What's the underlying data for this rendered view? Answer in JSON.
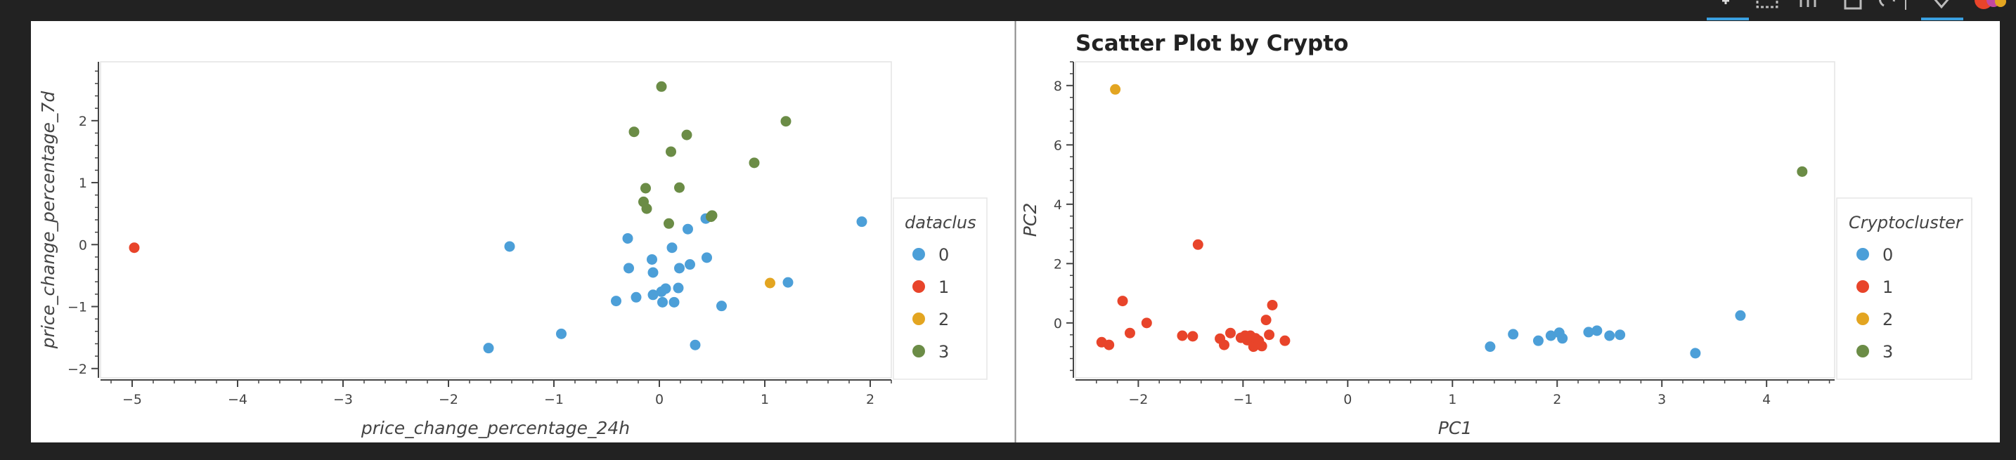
{
  "chart_data": [
    {
      "type": "scatter",
      "title": "",
      "xlabel": "price_change_percentage_24h",
      "ylabel": "price_change_percentage_7d",
      "xlim": [
        -5.3,
        2.2
      ],
      "ylim": [
        -2.15,
        2.95
      ],
      "x_ticks": [
        -5,
        -4,
        -3,
        -2,
        -1,
        0,
        1,
        2
      ],
      "y_ticks": [
        -2,
        -1,
        0,
        1,
        2
      ],
      "grid": false,
      "legend": {
        "title": "dataclus",
        "placement": "right"
      },
      "series": [
        {
          "name": "0",
          "color": "#4c9fd8",
          "points": [
            [
              1.92,
              0.37
            ],
            [
              -1.42,
              -0.03
            ],
            [
              -0.3,
              0.1
            ],
            [
              0.27,
              0.25
            ],
            [
              0.44,
              0.42
            ],
            [
              0.12,
              -0.05
            ],
            [
              0.45,
              -0.21
            ],
            [
              -0.29,
              -0.38
            ],
            [
              -0.07,
              -0.24
            ],
            [
              -0.06,
              -0.45
            ],
            [
              0.19,
              -0.38
            ],
            [
              0.29,
              -0.32
            ],
            [
              1.22,
              -0.61
            ],
            [
              -0.06,
              -0.81
            ],
            [
              0.02,
              -0.76
            ],
            [
              0.06,
              -0.71
            ],
            [
              0.18,
              -0.7
            ],
            [
              -0.22,
              -0.85
            ],
            [
              -0.41,
              -0.91
            ],
            [
              0.03,
              -0.93
            ],
            [
              0.14,
              -0.93
            ],
            [
              0.59,
              -0.99
            ],
            [
              -0.93,
              -1.44
            ],
            [
              0.34,
              -1.62
            ],
            [
              -1.62,
              -1.67
            ]
          ]
        },
        {
          "name": "1",
          "color": "#e8442a",
          "points": [
            [
              -4.98,
              -0.05
            ]
          ]
        },
        {
          "name": "2",
          "color": "#e3a521",
          "points": [
            [
              1.05,
              -0.62
            ]
          ]
        },
        {
          "name": "3",
          "color": "#6b8c46",
          "points": [
            [
              0.02,
              2.55
            ],
            [
              1.2,
              1.99
            ],
            [
              -0.24,
              1.82
            ],
            [
              0.26,
              1.77
            ],
            [
              0.11,
              1.5
            ],
            [
              0.9,
              1.32
            ],
            [
              -0.13,
              0.91
            ],
            [
              0.19,
              0.92
            ],
            [
              -0.15,
              0.69
            ],
            [
              -0.12,
              0.58
            ],
            [
              0.5,
              0.47
            ],
            [
              0.49,
              0.45
            ],
            [
              0.09,
              0.34
            ]
          ]
        }
      ]
    },
    {
      "type": "scatter",
      "title": "Scatter Plot by Crypto",
      "xlabel": "PC1",
      "ylabel": "PC2",
      "xlim": [
        -2.6,
        4.65
      ],
      "ylim": [
        -1.85,
        8.8
      ],
      "x_ticks": [
        -2,
        -1,
        0,
        1,
        2,
        3,
        4
      ],
      "y_ticks": [
        0,
        2,
        4,
        6,
        8
      ],
      "grid": false,
      "legend": {
        "title": "Cryptocluster",
        "placement": "right"
      },
      "series": [
        {
          "name": "0",
          "color": "#4c9fd8",
          "points": [
            [
              3.75,
              0.25
            ],
            [
              3.32,
              -1.02
            ],
            [
              2.6,
              -0.4
            ],
            [
              2.5,
              -0.43
            ],
            [
              2.38,
              -0.26
            ],
            [
              2.3,
              -0.31
            ],
            [
              2.05,
              -0.52
            ],
            [
              2.02,
              -0.33
            ],
            [
              1.94,
              -0.43
            ],
            [
              1.82,
              -0.6
            ],
            [
              1.58,
              -0.38
            ],
            [
              1.36,
              -0.8
            ]
          ]
        },
        {
          "name": "1",
          "color": "#e8442a",
          "points": [
            [
              -2.35,
              -0.65
            ],
            [
              -2.28,
              -0.74
            ],
            [
              -2.15,
              0.74
            ],
            [
              -2.08,
              -0.34
            ],
            [
              -1.92,
              0.0
            ],
            [
              -1.58,
              -0.43
            ],
            [
              -1.48,
              -0.45
            ],
            [
              -1.43,
              2.64
            ],
            [
              -1.22,
              -0.53
            ],
            [
              -1.18,
              -0.74
            ],
            [
              -1.12,
              -0.34
            ],
            [
              -1.02,
              -0.5
            ],
            [
              -0.98,
              -0.43
            ],
            [
              -0.96,
              -0.58
            ],
            [
              -0.93,
              -0.43
            ],
            [
              -0.9,
              -0.8
            ],
            [
              -0.88,
              -0.52
            ],
            [
              -0.85,
              -0.6
            ],
            [
              -0.82,
              -0.78
            ],
            [
              -0.78,
              0.1
            ],
            [
              -0.75,
              -0.4
            ],
            [
              -0.72,
              0.6
            ],
            [
              -0.6,
              -0.6
            ]
          ]
        },
        {
          "name": "2",
          "color": "#e3a521",
          "points": [
            [
              -2.22,
              7.87
            ]
          ]
        },
        {
          "name": "3",
          "color": "#6b8c46",
          "points": [
            [
              4.34,
              5.1
            ]
          ]
        }
      ]
    }
  ]
}
